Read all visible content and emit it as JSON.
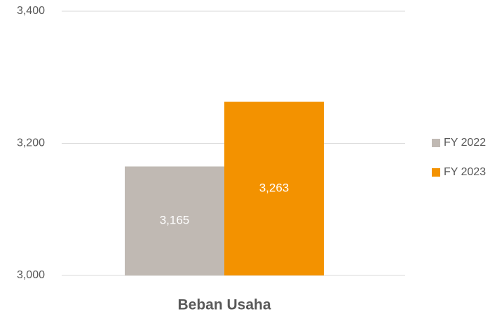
{
  "chart_data": {
    "type": "bar",
    "categories": [
      "Beban Usaha"
    ],
    "series": [
      {
        "name": "FY 2022",
        "color": "#c0b9b3",
        "values": [
          3165
        ],
        "value_labels": [
          "3,165"
        ]
      },
      {
        "name": "FY 2023",
        "color": "#f39200",
        "values": [
          3263
        ],
        "value_labels": [
          "3,263"
        ]
      }
    ],
    "ylim": [
      3000,
      3400
    ],
    "yticks": [
      {
        "value": 3000,
        "label": "3,000"
      },
      {
        "value": 3200,
        "label": "3,200"
      },
      {
        "value": 3400,
        "label": "3,400"
      }
    ],
    "grid": true,
    "legend": "right"
  }
}
